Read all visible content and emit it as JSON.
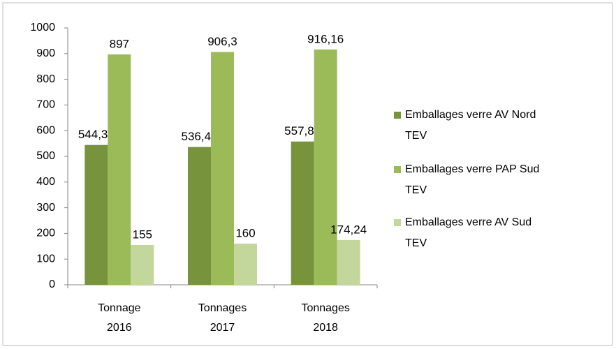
{
  "chart_data": {
    "type": "bar",
    "categories": [
      "Tonnage 2016",
      "Tonnages 2017",
      "Tonnages 2018"
    ],
    "series": [
      {
        "name": "Emballages verre AV Nord TEV",
        "color": "#77933c",
        "values": [
          544.32,
          536.44,
          557.82
        ],
        "value_labels": [
          "544,32",
          "536,44",
          "557,82"
        ]
      },
      {
        "name": "Emballages verre PAP Sud TEV",
        "color": "#9bbb59",
        "values": [
          897,
          906.3,
          916.16
        ],
        "value_labels": [
          "897",
          "906,3",
          "916,16"
        ]
      },
      {
        "name": "Emballages verre AV Sud TEV",
        "color": "#c3d69b",
        "values": [
          155,
          160,
          174.24
        ],
        "value_labels": [
          "155",
          "160",
          "174,24"
        ]
      }
    ],
    "ylim": [
      0,
      1000
    ],
    "yticks": [
      0,
      100,
      200,
      300,
      400,
      500,
      600,
      700,
      800,
      900,
      1000
    ],
    "grid": false,
    "legend": "right"
  }
}
